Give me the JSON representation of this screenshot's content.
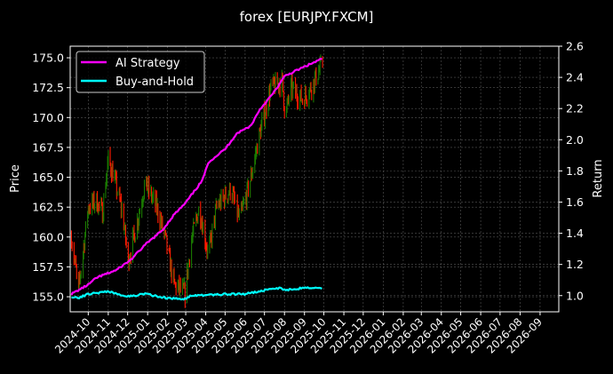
{
  "chart_data": {
    "type": "line",
    "title": "forex [EURJPY.FXCM]",
    "xlabel": "",
    "ylabel": "Price",
    "ylabel_right": "Return",
    "xlim": [
      "2024-09-03",
      "2026-09-30"
    ],
    "ylim": [
      153.74,
      175.97
    ],
    "ylim_right": [
      0.896,
      2.6
    ],
    "grid": true,
    "legend_position": "top-left",
    "x_ticks": [
      "2024-10",
      "2024-11",
      "2024-12",
      "2025-01",
      "2025-02",
      "2025-03",
      "2025-04",
      "2025-05",
      "2025-06",
      "2025-07",
      "2025-08",
      "2025-09",
      "2025-10",
      "2025-11",
      "2025-12",
      "2026-01",
      "2026-02",
      "2026-03",
      "2026-04",
      "2026-05",
      "2026-06",
      "2026-07",
      "2026-08",
      "2026-09"
    ],
    "y_ticks": [
      "155.0",
      "157.5",
      "160.0",
      "162.5",
      "165.0",
      "167.5",
      "170.0",
      "172.5",
      "175.0"
    ],
    "y_ticks_right": [
      "1.0",
      "1.2",
      "1.4",
      "1.6",
      "1.8",
      "2.0",
      "2.2",
      "2.4",
      "2.6"
    ],
    "price_path": {
      "x": [
        "2024-09-05",
        "2024-09-16",
        "2024-10-01",
        "2024-10-14",
        "2024-10-23",
        "2024-11-01",
        "2024-11-10",
        "2024-11-23",
        "2024-12-02",
        "2024-12-15",
        "2024-12-28",
        "2025-01-15",
        "2025-01-28",
        "2025-02-11",
        "2025-02-28",
        "2025-03-09",
        "2025-03-22",
        "2025-04-05",
        "2025-04-18",
        "2025-05-10",
        "2025-05-23",
        "2025-06-01",
        "2025-06-10",
        "2025-06-23",
        "2025-07-11",
        "2025-07-29",
        "2025-08-02",
        "2025-08-11",
        "2025-08-29",
        "2025-09-11",
        "2025-09-29"
      ],
      "y": [
        160.0,
        155.5,
        162.5,
        163.0,
        162.0,
        166.5,
        165.0,
        162.0,
        158.0,
        161.0,
        164.5,
        162.5,
        160.0,
        156.0,
        155.3,
        159.5,
        162.5,
        158.5,
        162.5,
        164.0,
        161.5,
        163.0,
        165.0,
        168.5,
        172.5,
        173.0,
        170.0,
        172.5,
        171.5,
        172.5,
        174.5
      ]
    },
    "series": [
      {
        "name": "AI Strategy",
        "color": "#ff00ff",
        "axis": "right",
        "x": [
          "2024-09-05",
          "2024-10-01",
          "2024-10-14",
          "2024-11-14",
          "2024-12-06",
          "2024-12-28",
          "2025-01-24",
          "2025-02-11",
          "2025-02-28",
          "2025-03-27",
          "2025-04-05",
          "2025-05-01",
          "2025-05-19",
          "2025-06-10",
          "2025-06-23",
          "2025-07-15",
          "2025-08-02",
          "2025-09-02",
          "2025-09-29"
        ],
        "values": [
          1.01,
          1.07,
          1.115,
          1.165,
          1.23,
          1.325,
          1.42,
          1.52,
          1.59,
          1.74,
          1.855,
          1.94,
          2.04,
          2.09,
          2.19,
          2.3,
          2.41,
          2.47,
          2.52
        ]
      },
      {
        "name": "Buy-and-Hold",
        "color": "#00ffff",
        "axis": "right",
        "x": [
          "2024-09-05",
          "2024-09-16",
          "2024-10-01",
          "2024-11-01",
          "2024-12-02",
          "2024-12-28",
          "2025-02-06",
          "2025-02-28",
          "2025-03-09",
          "2025-05-10",
          "2025-06-01",
          "2025-07-02",
          "2025-07-24",
          "2025-08-02",
          "2025-09-02",
          "2025-09-29"
        ],
        "values": [
          0.995,
          0.985,
          1.01,
          1.025,
          0.995,
          1.01,
          0.98,
          0.98,
          1.0,
          1.01,
          1.01,
          1.035,
          1.05,
          1.035,
          1.05,
          1.045
        ]
      }
    ],
    "candle_colors": {
      "up": "#1a7a00",
      "down": "#ff1a00"
    }
  }
}
